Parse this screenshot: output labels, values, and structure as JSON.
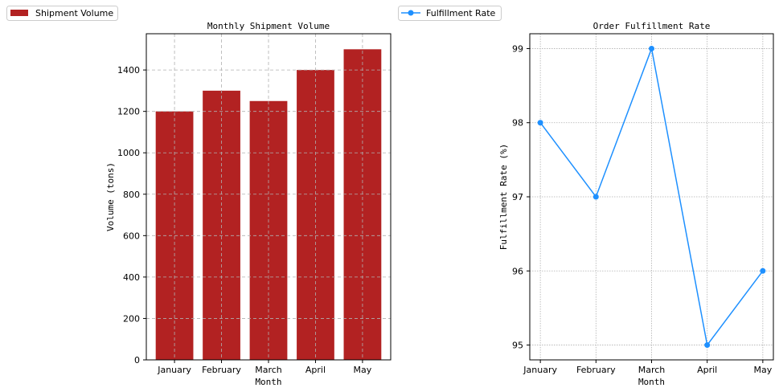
{
  "chart_data": [
    {
      "type": "bar",
      "title": "Monthly Shipment Volume",
      "xlabel": "Month",
      "ylabel": "Volume (tons)",
      "categories": [
        "January",
        "February",
        "March",
        "April",
        "May"
      ],
      "series": [
        {
          "name": "Shipment Volume",
          "values": [
            1200,
            1300,
            1250,
            1400,
            1500
          ],
          "color": "#b22222"
        }
      ],
      "ylim": [
        0,
        1575
      ],
      "yticks": [
        0,
        200,
        400,
        600,
        800,
        1000,
        1200,
        1400
      ],
      "grid": true,
      "grid_style": "dashed",
      "legend": "upper-left"
    },
    {
      "type": "line",
      "title": "Order Fulfillment Rate",
      "xlabel": "Month",
      "ylabel": "Fulfillment Rate (%)",
      "categories": [
        "January",
        "February",
        "March",
        "April",
        "May"
      ],
      "series": [
        {
          "name": "Fulfillment Rate",
          "values": [
            98,
            97,
            99,
            95,
            96
          ],
          "color": "#1e90ff",
          "marker": "circle"
        }
      ],
      "ylim": [
        94.8,
        99.2
      ],
      "yticks": [
        95,
        96,
        97,
        98,
        99
      ],
      "grid": true,
      "grid_style": "dotted",
      "legend": "upper-left"
    }
  ]
}
